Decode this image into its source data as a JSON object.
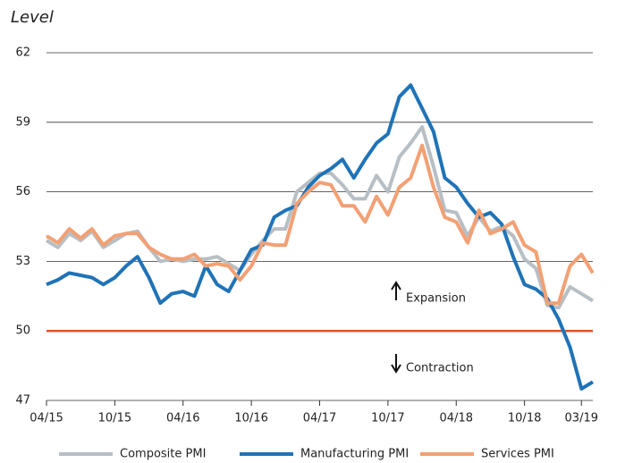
{
  "chart_data": {
    "type": "line",
    "y_label": "Level",
    "categories": [
      "04/15",
      null,
      null,
      null,
      null,
      null,
      "10/15",
      null,
      null,
      null,
      null,
      null,
      "04/16",
      null,
      null,
      null,
      null,
      null,
      "10/16",
      null,
      null,
      null,
      null,
      null,
      "04/17",
      null,
      null,
      null,
      null,
      null,
      "10/17",
      null,
      null,
      null,
      null,
      null,
      "04/18",
      null,
      null,
      null,
      null,
      null,
      "10/18",
      null,
      null,
      null,
      null,
      "03/19",
      null
    ],
    "series": [
      {
        "name": "Composite PMI",
        "color": "#b7bfc5",
        "values": [
          53.9,
          53.6,
          54.2,
          53.9,
          54.3,
          53.6,
          53.9,
          54.2,
          54.3,
          53.6,
          53.0,
          53.1,
          53.0,
          53.1,
          53.1,
          53.2,
          52.9,
          52.6,
          53.3,
          53.9,
          54.4,
          54.4,
          56.0,
          56.4,
          56.8,
          56.8,
          56.3,
          55.7,
          55.7,
          56.7,
          56.0,
          57.5,
          58.1,
          58.8,
          57.1,
          55.2,
          55.1,
          54.1,
          54.9,
          54.3,
          54.5,
          54.1,
          53.1,
          52.7,
          51.1,
          51.0,
          51.9,
          51.6,
          51.3
        ]
      },
      {
        "name": "Manufacturing PMI",
        "color": "#1f73b7",
        "values": [
          52.0,
          52.2,
          52.5,
          52.4,
          52.3,
          52.0,
          52.3,
          52.8,
          53.2,
          52.3,
          51.2,
          51.6,
          51.7,
          51.5,
          52.8,
          52.0,
          51.7,
          52.6,
          53.5,
          53.7,
          54.9,
          55.2,
          55.4,
          56.2,
          56.7,
          57.0,
          57.4,
          56.6,
          57.4,
          58.1,
          58.5,
          60.1,
          60.6,
          59.6,
          58.6,
          56.6,
          56.2,
          55.5,
          54.9,
          55.1,
          54.6,
          53.2,
          52.0,
          51.8,
          51.4,
          50.5,
          49.3,
          47.5,
          47.8
        ]
      },
      {
        "name": "Services PMI",
        "color": "#f2a074",
        "values": [
          54.1,
          53.8,
          54.4,
          54.0,
          54.4,
          53.7,
          54.1,
          54.2,
          54.2,
          53.6,
          53.3,
          53.1,
          53.1,
          53.3,
          52.8,
          52.9,
          52.8,
          52.2,
          52.8,
          53.8,
          53.7,
          53.7,
          55.5,
          56.0,
          56.4,
          56.3,
          55.4,
          55.4,
          54.7,
          55.8,
          55.0,
          56.2,
          56.6,
          58.0,
          56.2,
          54.9,
          54.7,
          53.8,
          55.2,
          54.2,
          54.4,
          54.7,
          53.7,
          53.4,
          51.2,
          51.2,
          52.8,
          53.3,
          52.5
        ]
      }
    ],
    "threshold": {
      "value": 50,
      "color": "#e0522b"
    },
    "annotations": [
      "Expansion",
      "Contraction"
    ],
    "ylim": [
      47,
      62
    ],
    "yticks": [
      47,
      50,
      53,
      56,
      59,
      62
    ],
    "grid": true,
    "legend": "bottom"
  }
}
